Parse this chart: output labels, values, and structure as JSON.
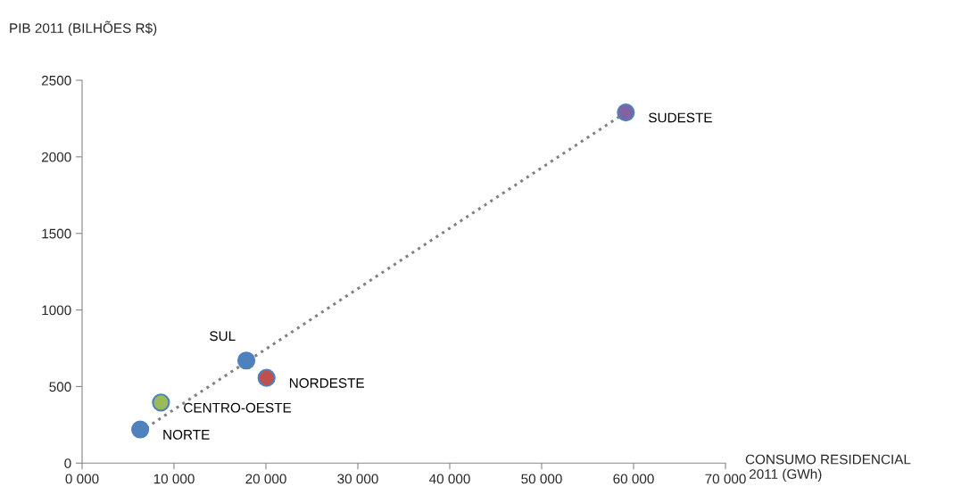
{
  "chart_data": {
    "type": "scatter",
    "xlabel": "CONSUMO RESIDENCIAL\n 2011 (GWh)",
    "ylabel": "PIB 2011 (BILHÕES R$)",
    "series": [
      {
        "name": "NORTE",
        "color": "#4f81bd",
        "marker": "circle",
        "x": [
          6320
        ],
        "values": [
          220
        ]
      },
      {
        "name": "CENTRO-OESTE",
        "color": "#9bbb59",
        "marker": "circle",
        "x": [
          8580
        ],
        "values": [
          396
        ]
      },
      {
        "name": "SUL",
        "color": "#4f81bd",
        "marker": "circle",
        "x": [
          17870
        ],
        "values": [
          670
        ]
      },
      {
        "name": "NORDESTE",
        "color": "#c0504d",
        "marker": "circle",
        "x": [
          20070
        ],
        "values": [
          557
        ]
      },
      {
        "name": "SUDESTE",
        "color": "#8064a2",
        "marker": "circle",
        "x": [
          59160
        ],
        "values": [
          2290
        ]
      },
      {
        "type": "line",
        "color": "#808080",
        "line_style": "dotted",
        "marker": "none",
        "x": [
          6320,
          59160
        ],
        "values": [
          205,
          2290
        ]
      }
    ],
    "xlim": [
      0,
      70000
    ],
    "ylim": [
      0,
      2500
    ],
    "xticks": [
      {
        "value": 0,
        "label": "0 000"
      },
      {
        "value": 10000,
        "label": "10 000"
      },
      {
        "value": 20000,
        "label": "20 000"
      },
      {
        "value": 30000,
        "label": "30 000"
      },
      {
        "value": 40000,
        "label": "40 000"
      },
      {
        "value": 50000,
        "label": "50 000"
      },
      {
        "value": 60000,
        "label": "60 000"
      },
      {
        "value": 70000,
        "label": "70 000"
      }
    ],
    "yticks": [
      0,
      500,
      1000,
      1500,
      2000,
      2500
    ],
    "grid": false,
    "legend": false
  }
}
